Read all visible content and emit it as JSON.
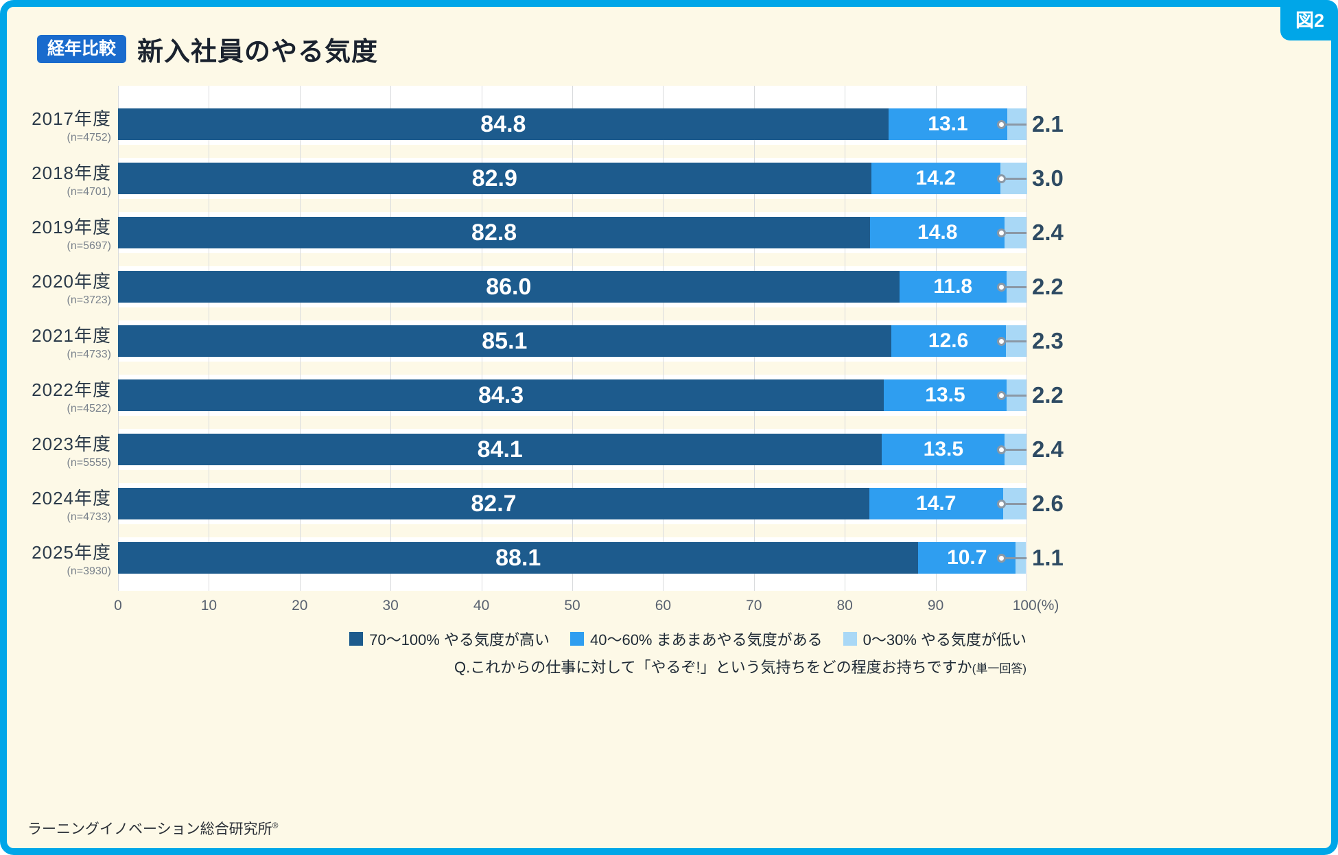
{
  "figure_label": "図2",
  "header": {
    "badge": "経年比較",
    "title": "新入社員のやる気度"
  },
  "chart_data": {
    "type": "bar",
    "orientation": "horizontal",
    "stacked": true,
    "title": "新入社員のやる気度",
    "unit": "%",
    "xlim": [
      0,
      100
    ],
    "grid": true,
    "legend_position": "bottom-right",
    "x_ticks": [
      "0",
      "10",
      "20",
      "30",
      "40",
      "50",
      "60",
      "70",
      "80",
      "90",
      "100(%)"
    ],
    "categories": [
      "2017年度",
      "2018年度",
      "2019年度",
      "2020年度",
      "2021年度",
      "2022年度",
      "2023年度",
      "2024年度",
      "2025年度"
    ],
    "sample_labels": [
      "(n=4752)",
      "(n=4701)",
      "(n=5697)",
      "(n=3723)",
      "(n=4733)",
      "(n=4522)",
      "(n=5555)",
      "(n=4733)",
      "(n=3930)"
    ],
    "series": [
      {
        "name": "70〜100% やる気度が高い",
        "color": "#1d5b8d",
        "values": [
          84.8,
          82.9,
          82.8,
          86.0,
          85.1,
          84.3,
          84.1,
          82.7,
          88.1
        ]
      },
      {
        "name": "40〜60% まあまあやる気度がある",
        "color": "#2f9ef0",
        "values": [
          13.1,
          14.2,
          14.8,
          11.8,
          12.6,
          13.5,
          13.5,
          14.7,
          10.7
        ]
      },
      {
        "name": "0〜30% やる気度が低い",
        "color": "#a9d8f6",
        "values": [
          2.1,
          3.0,
          2.4,
          2.2,
          2.3,
          2.2,
          2.4,
          2.6,
          1.1
        ]
      }
    ]
  },
  "question": {
    "text": "Q.これからの仕事に対して「やるぞ!」という気持ちをどの程度お持ちですか",
    "suffix": "(単一回答)"
  },
  "footer": {
    "text": "ラーニングイノベーション総合研究所",
    "mark": "®"
  },
  "colors": {
    "frame_blue": "#00a6e8",
    "badge_blue": "#1a6bcd",
    "background_cream": "#fdf9e7",
    "bar_dark_blue": "#1d5b8d",
    "bar_mid_blue": "#2f9ef0",
    "bar_light_blue": "#a9d8f6",
    "leader_gray": "#8b98a5",
    "text_navy": "#222e3a"
  }
}
